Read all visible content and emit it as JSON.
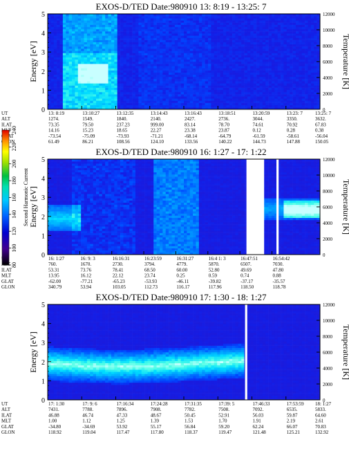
{
  "chart_data": [
    {
      "type": "heatmap",
      "title": "EXOS-D/TED   Date:980910  13: 8:19 - 13:25: 7",
      "ylabel": "Energy [eV]",
      "y2label": "Temperature [K]",
      "ylim": [
        0,
        5
      ],
      "y2lim": [
        0,
        12000
      ],
      "yticks": [
        "0",
        "1",
        "2",
        "3",
        "4",
        "5"
      ],
      "y2ticks": [
        "0",
        "2000",
        "4000",
        "6000",
        "8000",
        "10000",
        "12000"
      ],
      "rows": [
        {
          "label": "UT",
          "values": [
            "13: 8:19",
            "13:10:27",
            "13:12:35",
            "13:14:43",
            "13:16:43",
            "13:18:51",
            "13:20:59",
            "13:23: 7",
            "13:25: 7"
          ]
        },
        {
          "label": "ALT",
          "values": [
            "1274.",
            "1549.",
            "1840.",
            "2140.",
            "2427.",
            "2736.",
            "3044.",
            "3350.",
            "3632."
          ]
        },
        {
          "label": "ILAT",
          "values": [
            "73.35",
            "79.50",
            "237.23",
            "999.00",
            "83.14",
            "78.70",
            "74.61",
            "70.92",
            "67.83"
          ]
        },
        {
          "label": "MLT",
          "values": [
            "14.16",
            "15.23",
            "18.65",
            "22.27",
            "23.38",
            "23.87",
            "0.12",
            "0.28",
            "0.38"
          ]
        },
        {
          "label": "GLAT",
          "values": [
            "-73.54",
            "-75.09",
            "-73.93",
            "-71.21",
            "-68.14",
            "-64.79",
            "-61.59",
            "-58.61",
            "-56.04"
          ]
        },
        {
          "label": "GLON",
          "values": [
            "61.49",
            "86.21",
            "108.56",
            "124.10",
            "133.56",
            "140.22",
            "144.73",
            "147.88",
            "150.05"
          ]
        }
      ]
    },
    {
      "type": "heatmap",
      "title": "EXOS-D/TED   Date:980910  16: 1:27 - 17: 1:22",
      "ylabel": "Energy [eV]",
      "y2label": "Temperature [K]",
      "ylim": [
        0,
        5
      ],
      "y2lim": [
        0,
        12000
      ],
      "yticks": [
        "0",
        "1",
        "2",
        "3",
        "4",
        "5"
      ],
      "y2ticks": [
        "0",
        "2000",
        "4000",
        "6000",
        "8000",
        "10000",
        "12000"
      ],
      "rows": [
        {
          "label": "UT",
          "values": [
            "16: 1:27",
            "16: 9: 3",
            "16:16:31",
            "16:23:59",
            "16:31:27",
            "16:4 1: 3",
            "16:47:51",
            "16:54:42"
          ]
        },
        {
          "label": "ALT",
          "values": [
            "760.",
            "1670.",
            "2730.",
            "3794.",
            "4779.",
            "5870.",
            "6507.",
            "7030."
          ]
        },
        {
          "label": "ILAT",
          "values": [
            "53.31",
            "73.76",
            "78.41",
            "68.50",
            "60.00",
            "52.80",
            "49.69",
            "47.80"
          ]
        },
        {
          "label": "MLT",
          "values": [
            "13.95",
            "16.12",
            "22.12",
            "23.74",
            "0.25",
            "0.59",
            "0.74",
            "0.88"
          ]
        },
        {
          "label": "GLAT",
          "values": [
            "-62.00",
            "-77.21",
            "-65.23",
            "-53.93",
            "-46.11",
            "-39.82",
            "-37.17",
            "-35.57"
          ]
        },
        {
          "label": "GLON",
          "values": [
            "340.79",
            "53.94",
            "103.05",
            "112.73",
            "116.17",
            "117.96",
            "118.50",
            "118.78"
          ]
        }
      ]
    },
    {
      "type": "heatmap",
      "title": "EXOS-D/TED   Date:980910  17: 1:30 - 18: 1:27",
      "ylabel": "Energy [eV]",
      "y2label": "Temperature [K]",
      "ylim": [
        0,
        5
      ],
      "y2lim": [
        0,
        12000
      ],
      "yticks": [
        "0",
        "1",
        "2",
        "3",
        "4",
        "5"
      ],
      "y2ticks": [
        "0",
        "2000",
        "4000",
        "6000",
        "8000",
        "10000",
        "12000"
      ],
      "rows": [
        {
          "label": "UT",
          "values": [
            "17: 1:30",
            "17: 9: 6",
            "17:16:34",
            "17:24:28",
            "17:31:35",
            "17:39: 5",
            "17:46:33",
            "17:53:59",
            "18: 1:27"
          ]
        },
        {
          "label": "ALT",
          "values": [
            "7431.",
            "7788.",
            "7896.",
            "7908.",
            "7782.",
            "7508.",
            "7092.",
            "6535.",
            "5833."
          ]
        },
        {
          "label": "ILAT",
          "values": [
            "46.88",
            "46.74",
            "47.33",
            "48.67",
            "50.45",
            "52.91",
            "56.03",
            "59.87",
            "64.60"
          ]
        },
        {
          "label": "MLT",
          "values": [
            "1.00",
            "1.12",
            "1.25",
            "1.39",
            "1.53",
            "1.70",
            "1.91",
            "2.19",
            "2.61"
          ]
        },
        {
          "label": "GLAT",
          "values": [
            "-34.80",
            "-34.69",
            "53.92",
            "55.17",
            "56.84",
            "59.20",
            "62.24",
            "66.07",
            "70.83"
          ]
        },
        {
          "label": "GLON",
          "values": [
            "118.92",
            "119.04",
            "117.47",
            "117.80",
            "118.37",
            "119.47",
            "121.48",
            "125.21",
            "132.92"
          ]
        }
      ]
    }
  ],
  "colorbar": {
    "label": "Second Harmonic Current",
    "ticks": [
      "80",
      "100",
      "120",
      "140",
      "160",
      "180",
      "200",
      "220",
      "240"
    ],
    "colors": [
      "#000000",
      "#3b0080",
      "#0a00d0",
      "#0038ff",
      "#0090ff",
      "#00e0e0",
      "#00c040",
      "#90e000",
      "#ffff00",
      "#ffa000",
      "#ff2000",
      "#e00000"
    ]
  }
}
